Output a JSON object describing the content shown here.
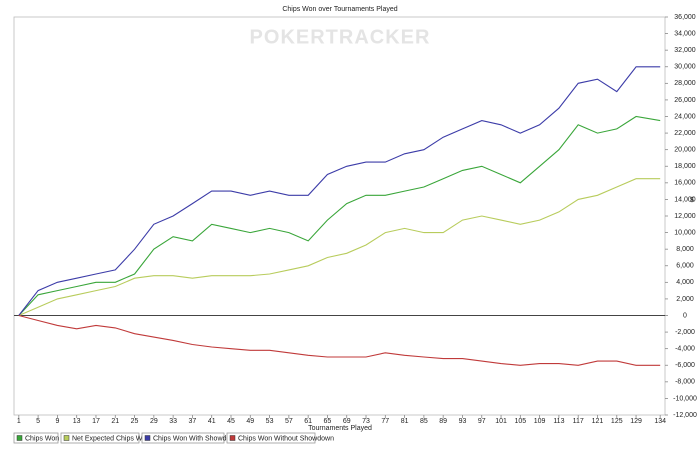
{
  "chart_data": {
    "type": "line",
    "title": "Chips Won over Tournaments Played",
    "watermark": "POKERTRACKER",
    "x_label": "Tournaments Played",
    "y_label": "$",
    "x": [
      1,
      5,
      9,
      13,
      17,
      21,
      25,
      29,
      33,
      37,
      41,
      45,
      49,
      53,
      57,
      61,
      65,
      69,
      73,
      77,
      81,
      85,
      89,
      93,
      97,
      101,
      105,
      109,
      113,
      117,
      121,
      125,
      129,
      134
    ],
    "series": [
      {
        "name": "Chips Won",
        "color": "#3aa63a",
        "values": [
          0,
          2500,
          3000,
          3500,
          4000,
          4000,
          5000,
          8000,
          9500,
          9000,
          11000,
          10500,
          10000,
          10500,
          10000,
          9000,
          11500,
          13500,
          14500,
          14500,
          15000,
          15500,
          16500,
          17500,
          18000,
          17000,
          16000,
          18000,
          20000,
          23000,
          22000,
          22500,
          24000,
          23500
        ]
      },
      {
        "name": "Net Expected Chips Won",
        "color": "#b8cc5c",
        "values": [
          0,
          1000,
          2000,
          2500,
          3000,
          3500,
          4500,
          4800,
          4800,
          4500,
          4800,
          4800,
          4800,
          5000,
          5500,
          6000,
          7000,
          7500,
          8500,
          10000,
          10500,
          10000,
          10000,
          11500,
          12000,
          11500,
          11000,
          11500,
          12500,
          14000,
          14500,
          15500,
          16500,
          16500
        ]
      },
      {
        "name": "Chips Won With Showdown",
        "color": "#3c3ca8",
        "values": [
          0,
          3000,
          4000,
          4500,
          5000,
          5500,
          8000,
          11000,
          12000,
          13500,
          15000,
          15000,
          14500,
          15000,
          14500,
          14500,
          17000,
          18000,
          18500,
          18500,
          19500,
          20000,
          21500,
          22500,
          23500,
          23000,
          22000,
          23000,
          25000,
          28000,
          28500,
          27000,
          30000,
          30000
        ]
      },
      {
        "name": "Chips Won Without Showdown",
        "color": "#c03a3a",
        "values": [
          0,
          -600,
          -1200,
          -1600,
          -1200,
          -1500,
          -2200,
          -2600,
          -3000,
          -3500,
          -3800,
          -4000,
          -4200,
          -4200,
          -4500,
          -4800,
          -5000,
          -5000,
          -5000,
          -4500,
          -4800,
          -5000,
          -5200,
          -5200,
          -5500,
          -5800,
          -6000,
          -5800,
          -5800,
          -6000,
          -5500,
          -5500,
          -6000,
          -6000
        ]
      }
    ],
    "xlim": [
      0,
      135
    ],
    "xticks": [
      1,
      5,
      9,
      13,
      17,
      21,
      25,
      29,
      33,
      37,
      41,
      45,
      49,
      53,
      57,
      61,
      65,
      69,
      73,
      77,
      81,
      85,
      89,
      93,
      97,
      101,
      105,
      109,
      113,
      117,
      121,
      125,
      129,
      134
    ],
    "ylim": [
      -12000,
      36000
    ],
    "yticks": [
      {
        "value": -12000,
        "label": "-12,000"
      },
      {
        "value": -10000,
        "label": "-10,000"
      },
      {
        "value": -8000,
        "label": "-8,000"
      },
      {
        "value": -6000,
        "label": "-6,000"
      },
      {
        "value": -4000,
        "label": "-4,000"
      },
      {
        "value": -2000,
        "label": "-2,000"
      },
      0,
      {
        "value": 2000,
        "label": "2,000"
      },
      {
        "value": 4000,
        "label": "4,000"
      },
      {
        "value": 6000,
        "label": "6,000"
      },
      {
        "value": 8000,
        "label": "8,000"
      },
      {
        "value": 10000,
        "label": "10,000"
      },
      {
        "value": 12000,
        "label": "12,000"
      },
      {
        "value": 14000,
        "label": "14,000"
      },
      {
        "value": 16000,
        "label": "16,000"
      },
      {
        "value": 18000,
        "label": "18,000"
      },
      {
        "value": 20000,
        "label": "20,000"
      },
      {
        "value": 22000,
        "label": "22,000"
      },
      {
        "value": 24000,
        "label": "24,000"
      },
      {
        "value": 26000,
        "label": "26,000"
      },
      {
        "value": 28000,
        "label": "28,000"
      },
      {
        "value": 30000,
        "label": "30,000"
      },
      {
        "value": 32000,
        "label": "32,000"
      },
      {
        "value": 34000,
        "label": "34,000"
      },
      {
        "value": 36000,
        "label": "36,000"
      }
    ],
    "yaxis_side": "right",
    "legend": "bottom-left"
  }
}
